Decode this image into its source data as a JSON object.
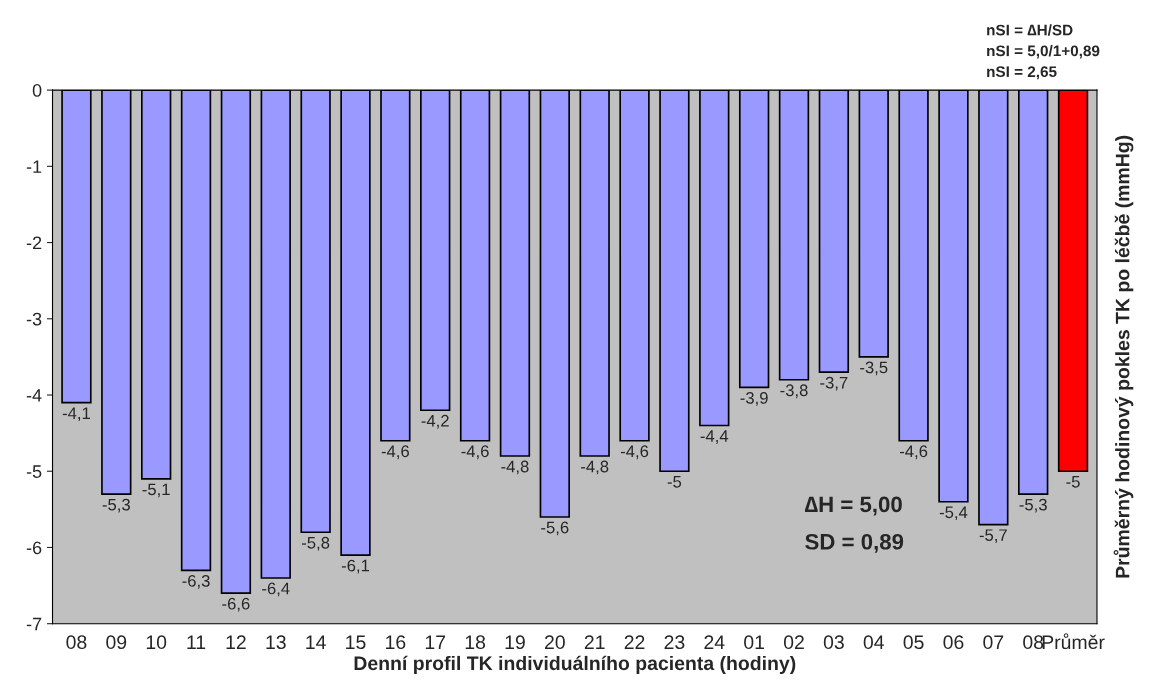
{
  "chart_data": {
    "type": "bar",
    "xlabel": "Denní profil TK individuálního pacienta (hodiny)",
    "ylabel": "Průměrný hodinový pokles TK po léčbě (mmHg)",
    "categories": [
      "08",
      "09",
      "10",
      "11",
      "12",
      "13",
      "14",
      "15",
      "16",
      "17",
      "18",
      "19",
      "20",
      "21",
      "22",
      "23",
      "24",
      "01",
      "02",
      "03",
      "04",
      "05",
      "06",
      "07",
      "08",
      "Průměr"
    ],
    "values": [
      -4.1,
      -5.3,
      -5.1,
      -6.3,
      -6.6,
      -6.4,
      -5.8,
      -6.1,
      -4.6,
      -4.2,
      -4.6,
      -4.8,
      -5.6,
      -4.8,
      -4.6,
      -5,
      -4.4,
      -3.9,
      -3.8,
      -3.7,
      -3.5,
      -4.6,
      -5.4,
      -5.7,
      -5.3,
      -5
    ],
    "value_labels": [
      "-4,1",
      "-5,3",
      "-5,1",
      "-6,3",
      "-6,6",
      "-6,4",
      "-5,8",
      "-6,1",
      "-4,6",
      "-4,2",
      "-4,6",
      "-4,8",
      "-5,6",
      "-4,8",
      "-4,6",
      "-5",
      "-4,4",
      "-3,9",
      "-3,8",
      "-3,7",
      "-3,5",
      "-4,6",
      "-5,4",
      "-5,7",
      "-5,3",
      "-5"
    ],
    "colors": [
      "#9999ff",
      "#9999ff",
      "#9999ff",
      "#9999ff",
      "#9999ff",
      "#9999ff",
      "#9999ff",
      "#9999ff",
      "#9999ff",
      "#9999ff",
      "#9999ff",
      "#9999ff",
      "#9999ff",
      "#9999ff",
      "#9999ff",
      "#9999ff",
      "#9999ff",
      "#9999ff",
      "#9999ff",
      "#9999ff",
      "#9999ff",
      "#9999ff",
      "#9999ff",
      "#9999ff",
      "#9999ff",
      "#ff0000"
    ],
    "ylim": [
      -7,
      0
    ],
    "yticks": [
      -7,
      -6,
      -5,
      -4,
      -3,
      -2,
      -1,
      0
    ],
    "grid": false,
    "legend": false,
    "annotations": [
      "nSI = ∆H/SD",
      "nSI = 5,0/1+0,89",
      "nSI = 2,65",
      "∆H = 5,00",
      "SD = 0,89"
    ]
  }
}
